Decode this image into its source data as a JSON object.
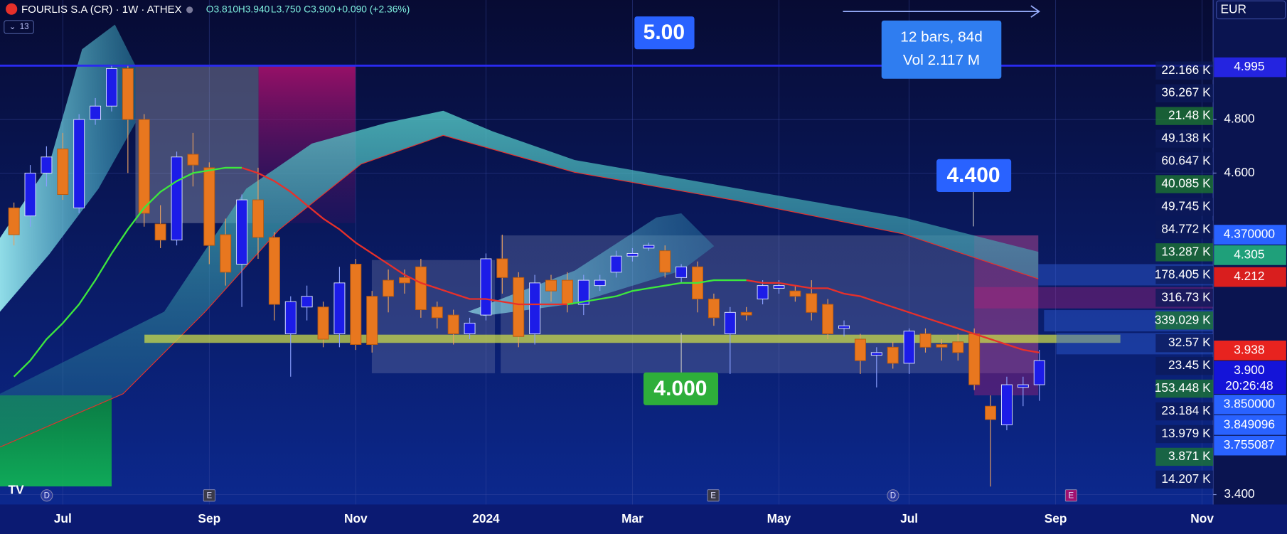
{
  "chart_data": {
    "type": "candlestick",
    "symbol": "FOURLIS S.A (CR) · 1W · ATHEX",
    "ohlc_legend": [
      "O3.810",
      "H3.940",
      "L3.750",
      "C3.900",
      "+0.090 (+2.36%)"
    ],
    "indicator_badge": "13",
    "currency": "EUR",
    "categories": [
      null,
      null,
      null,
      "Jul",
      null,
      null,
      null,
      null,
      null,
      null,
      null,
      null,
      "Sep",
      null,
      null,
      null,
      null,
      null,
      null,
      null,
      null,
      "Nov",
      null,
      null,
      null,
      null,
      null,
      null,
      null,
      "2024",
      null,
      null,
      null,
      null,
      null,
      null,
      null,
      null,
      "Mar",
      null,
      null,
      null,
      null,
      null,
      null,
      null,
      null,
      "May",
      null,
      null,
      null,
      null,
      null,
      null,
      null,
      "Jul",
      null,
      null,
      null,
      null,
      null,
      null,
      null,
      null,
      "Sep",
      null,
      null,
      null,
      null,
      null,
      null,
      null,
      null,
      "Nov"
    ],
    "open": [
      4.47,
      4.44,
      4.6,
      4.69,
      4.47,
      4.8,
      4.85,
      4.99,
      4.8,
      4.41,
      4.35,
      4.67,
      4.62,
      4.37,
      4.26,
      4.5,
      4.36,
      4.0,
      4.1,
      4.1,
      4.0,
      4.26,
      4.14,
      4.2,
      4.21,
      4.25,
      4.1,
      4.07,
      4.0,
      4.07,
      4.28,
      4.21,
      4.0,
      4.2,
      4.2,
      4.11,
      4.18,
      4.23,
      4.29,
      4.32,
      4.31,
      4.21,
      4.25,
      4.13,
      4.0,
      4.08,
      4.13,
      4.17,
      4.16,
      4.15,
      4.11,
      4.02,
      3.98,
      3.92,
      3.95,
      3.89,
      4.0,
      3.96,
      3.97,
      4.0,
      3.73,
      3.66,
      3.8,
      3.81,
      null,
      null,
      null,
      null,
      null,
      null,
      null,
      null,
      null,
      null
    ],
    "high": [
      4.49,
      4.63,
      4.7,
      4.75,
      4.82,
      4.88,
      5.0,
      5.0,
      4.82,
      4.48,
      4.68,
      4.75,
      4.64,
      4.43,
      4.52,
      4.62,
      4.38,
      4.14,
      4.18,
      4.12,
      4.25,
      4.28,
      4.16,
      4.24,
      4.24,
      4.28,
      4.12,
      4.09,
      4.06,
      4.3,
      4.37,
      4.23,
      4.22,
      4.22,
      4.23,
      4.22,
      4.22,
      4.31,
      4.32,
      4.34,
      4.33,
      4.26,
      4.27,
      4.15,
      4.1,
      4.1,
      4.2,
      4.2,
      4.18,
      4.2,
      4.13,
      4.05,
      4.0,
      3.95,
      3.97,
      4.02,
      4.02,
      3.98,
      4.0,
      4.02,
      3.77,
      3.84,
      3.84,
      3.94,
      null,
      null,
      null,
      null,
      null,
      null,
      null,
      null,
      null,
      null
    ],
    "low": [
      4.33,
      4.4,
      4.55,
      4.5,
      4.45,
      4.78,
      4.83,
      4.6,
      4.4,
      4.32,
      4.33,
      4.55,
      4.26,
      4.18,
      4.1,
      4.28,
      4.05,
      3.84,
      4.05,
      3.95,
      3.95,
      3.94,
      3.93,
      4.08,
      4.15,
      4.06,
      4.02,
      3.96,
      3.98,
      4.05,
      4.15,
      3.95,
      3.96,
      4.12,
      4.08,
      4.07,
      4.16,
      4.21,
      4.27,
      4.31,
      4.21,
      4.19,
      4.08,
      4.03,
      3.85,
      4.05,
      4.11,
      4.15,
      4.12,
      4.05,
      3.98,
      3.99,
      3.85,
      3.8,
      3.87,
      3.85,
      3.93,
      3.9,
      3.9,
      3.79,
      3.43,
      3.64,
      3.73,
      3.75,
      null,
      null,
      null,
      null,
      null,
      null,
      null,
      null,
      null,
      null
    ],
    "close": [
      4.37,
      4.6,
      4.66,
      4.52,
      4.8,
      4.85,
      4.99,
      4.8,
      4.45,
      4.35,
      4.66,
      4.63,
      4.33,
      4.23,
      4.5,
      4.36,
      4.11,
      4.12,
      4.14,
      3.98,
      4.19,
      3.96,
      3.96,
      4.14,
      4.19,
      4.09,
      4.06,
      4.0,
      4.04,
      4.28,
      4.21,
      3.99,
      4.19,
      4.16,
      4.11,
      4.2,
      4.2,
      4.29,
      4.3,
      4.33,
      4.23,
      4.25,
      4.13,
      4.06,
      4.08,
      4.07,
      4.18,
      4.18,
      4.14,
      4.08,
      4.0,
      4.03,
      3.9,
      3.93,
      3.89,
      4.01,
      3.95,
      3.95,
      3.93,
      3.81,
      3.68,
      3.81,
      3.81,
      3.9,
      null,
      null,
      null,
      null,
      null,
      null,
      null,
      null,
      null,
      null
    ],
    "up_color": "#1c1ce8",
    "down_color": "#e8771f",
    "ma": {
      "color_up": "#3de83d",
      "color_down": "#e8302a",
      "values": [
        3.84,
        3.9,
        3.98,
        4.04,
        4.11,
        4.2,
        4.3,
        4.39,
        4.47,
        4.53,
        4.57,
        4.6,
        4.61,
        4.62,
        4.62,
        4.6,
        4.57,
        4.53,
        4.48,
        4.43,
        4.39,
        4.34,
        4.3,
        4.26,
        4.22,
        4.19,
        4.17,
        4.15,
        4.13,
        4.13,
        4.12,
        4.11,
        4.11,
        4.11,
        4.11,
        4.12,
        4.13,
        4.14,
        4.16,
        4.17,
        4.18,
        4.19,
        4.19,
        4.2,
        4.2,
        4.2,
        4.19,
        4.19,
        4.18,
        4.17,
        4.17,
        4.15,
        4.14,
        4.12,
        4.1,
        4.08,
        4.06,
        4.04,
        4.02,
        4.0,
        3.98,
        3.96,
        3.94,
        3.93,
        null,
        null,
        null,
        null,
        null,
        null,
        null,
        null,
        null,
        null
      ]
    },
    "ylim": [
      3.363,
      5.246
    ],
    "yticks": [
      {
        "value": 4.8,
        "label": "4.800"
      },
      {
        "value": 4.6,
        "label": "4.600"
      },
      {
        "value": 3.4,
        "label": "3.400"
      }
    ],
    "grid": true,
    "price_labels": [
      {
        "value": 4.995,
        "label": "4.995",
        "color": "#2424e0"
      },
      {
        "value": 4.37,
        "label": "4.370000",
        "color": "#2962ff"
      },
      {
        "value": 4.305,
        "label": "4.305",
        "color": "#1fa07a"
      },
      {
        "value": 4.212,
        "label": "4.212",
        "color": "#d91e1e"
      },
      {
        "value": 3.938,
        "label": "3.938",
        "color": "#e8231f"
      },
      {
        "value": 3.9,
        "label": "3.900",
        "color": "#1414d8",
        "countdown": "20:26:48"
      },
      {
        "value": 3.85,
        "label": "3.850000",
        "color": "#2962ff"
      },
      {
        "value": 3.849096,
        "label": "3.849096",
        "color": "#2962ff"
      },
      {
        "value": 3.755087,
        "label": "3.755087",
        "color": "#2962ff"
      }
    ],
    "volume_labels": [
      "22.166 K",
      "36.267 K",
      "21.48 K",
      "49.138 K",
      "60.647 K",
      "40.085 K",
      "49.745 K",
      "84.772 K",
      "13.287 K",
      "178.405 K",
      "316.73 K",
      "339.029 K",
      "32.57 K",
      "23.45 K",
      "153.448 K",
      "23.184 K",
      "13.979 K",
      "3.871 K",
      "14.207 K"
    ],
    "annotations": [
      "5.00",
      "12 bars, 84d",
      "Vol 2.117 M",
      "4.400",
      "4.000"
    ],
    "event_markers": [
      "D",
      "E",
      "E",
      "D",
      "E"
    ]
  }
}
